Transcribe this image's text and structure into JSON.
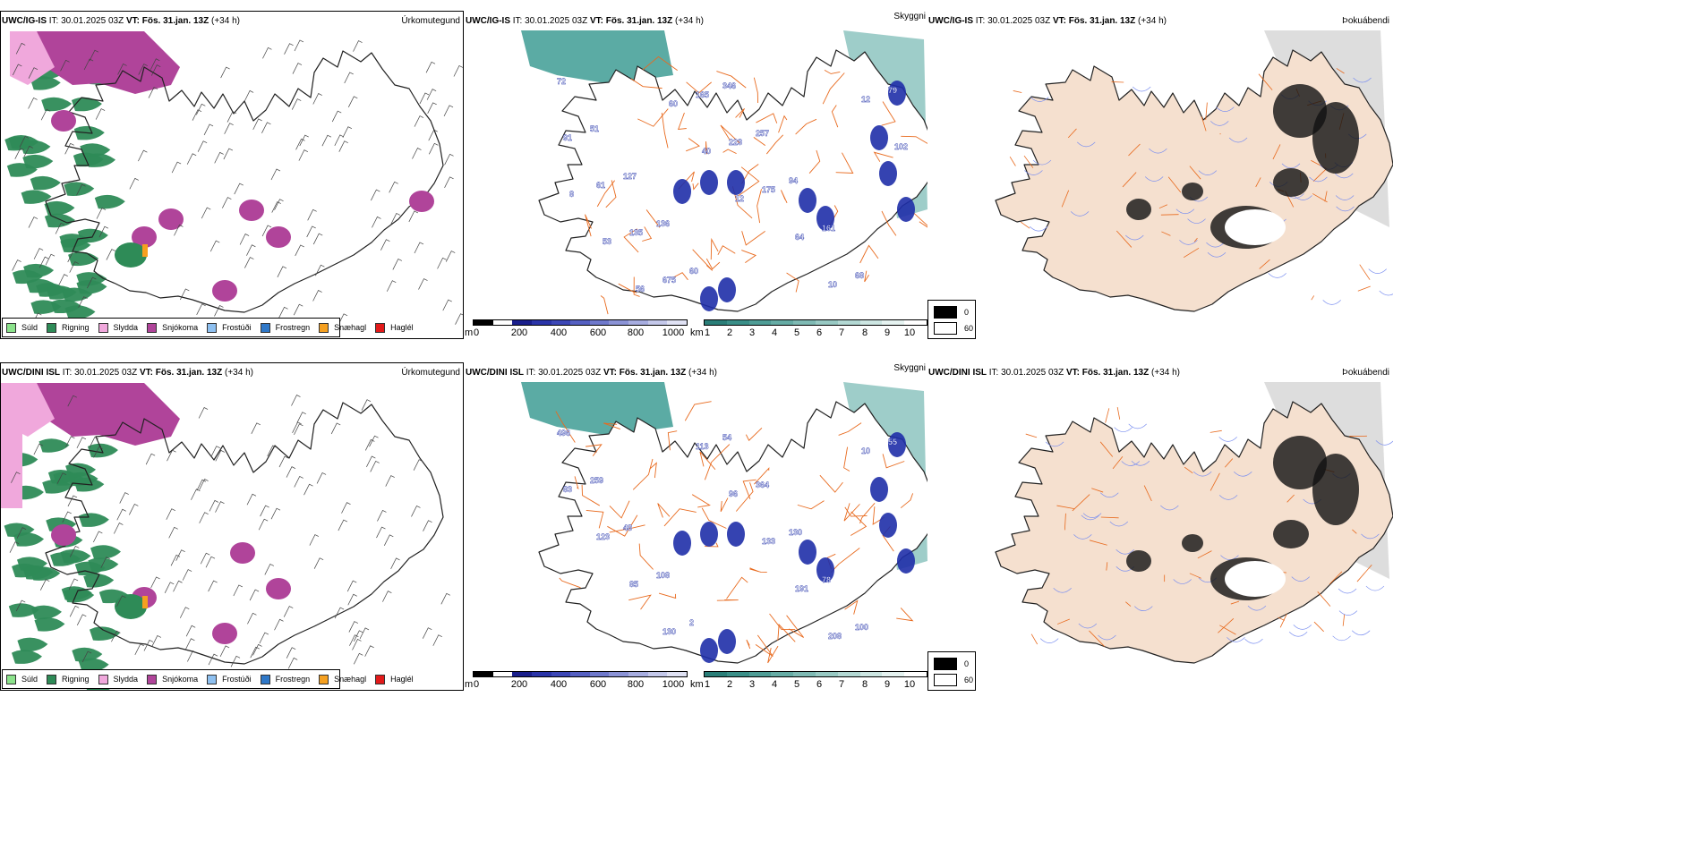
{
  "rows": [
    {
      "model": "UWC/IG-IS",
      "it_label": "IT:",
      "it_value": "30.01.2025 03Z",
      "vt_label": "VT:",
      "vt_value": "Fös. 31.jan. 13Z",
      "lead": "(+34 h)",
      "left_title": "Úrkomutegund",
      "mid_title": "Skyggni",
      "right_title": "Þokuábendi",
      "visibility_labels": [
        "72",
        "51",
        "127",
        "136",
        "60",
        "346",
        "257",
        "94",
        "161",
        "68",
        "79",
        "91",
        "61",
        "135",
        "675",
        "165",
        "223",
        "175",
        "64",
        "10",
        "12",
        "102",
        "8",
        "53",
        "56",
        "60",
        "40",
        "12"
      ]
    },
    {
      "model": "UWC/DINI ISL",
      "it_label": "IT:",
      "it_value": "30.01.2025 03Z",
      "vt_label": "VT:",
      "vt_value": "Fös. 31.jan. 13Z",
      "lead": "(+34 h)",
      "left_title": "Úrkomutegund",
      "mid_title": "Skyggni",
      "right_title": "Þokuábendi",
      "visibility_labels": [
        "496",
        "259",
        "48",
        "108",
        "2",
        "54",
        "364",
        "130",
        "78",
        "100",
        "55",
        "83",
        "123",
        "85",
        "130",
        "113",
        "96",
        "133",
        "191",
        "208",
        "10"
      ]
    }
  ],
  "precip_legend": [
    {
      "label": "Súld",
      "color": "#8be28b"
    },
    {
      "label": "Rigning",
      "color": "#2e8b57"
    },
    {
      "label": "Slydda",
      "color": "#f0a8dc"
    },
    {
      "label": "Snjókoma",
      "color": "#b0449a"
    },
    {
      "label": "Frostúði",
      "color": "#8ec0f0"
    },
    {
      "label": "Frostregn",
      "color": "#2f78c8"
    },
    {
      "label": "Snæhagl",
      "color": "#f5a020"
    },
    {
      "label": "Haglél",
      "color": "#e21a1a"
    }
  ],
  "height_bar": {
    "unit": "m",
    "ticks": [
      "0",
      "200",
      "400",
      "600",
      "800",
      "1000"
    ]
  },
  "vis_bar": {
    "unit": "km",
    "ticks": [
      "1",
      "2",
      "3",
      "4",
      "5",
      "6",
      "7",
      "8",
      "9",
      "10"
    ]
  },
  "fog_legend": [
    {
      "label": "0",
      "color": "#000000"
    },
    {
      "label": "60",
      "color": "#ffffff"
    }
  ],
  "colors": {
    "land": "#f5e0cf",
    "road": "#e86a1e",
    "river": "#7b8ff0",
    "teal": "#3e9c94",
    "blue": "#1f2fa8"
  }
}
